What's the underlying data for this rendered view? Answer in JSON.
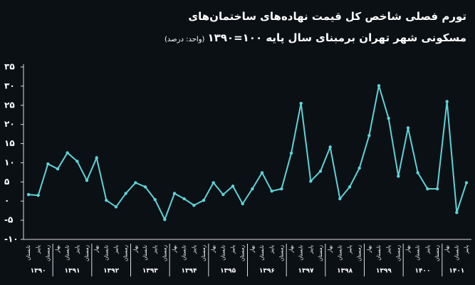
{
  "chart_data": {
    "type": "line",
    "title": "تورم فصلی شاخص کل قیمت نهاده‌های ساختمان‌های",
    "title_line2": "مسکونی شهر تهران برمبنای سال پایه ۱۰۰=۱۳۹۰",
    "unit_note": "(واحد: درصد)",
    "categories": [
      "تابستان",
      "پاییز",
      "زمستان",
      "بهار",
      "تابستان",
      "پاییز",
      "زمستان",
      "بهار",
      "تابستان",
      "پاییز",
      "زمستان",
      "بهار",
      "تابستان",
      "پاییز",
      "زمستان",
      "بهار",
      "تابستان",
      "پاییز",
      "زمستان",
      "بهار",
      "تابستان",
      "پاییز",
      "زمستان",
      "بهار",
      "تابستان",
      "پاییز",
      "زمستان",
      "بهار",
      "تابستان",
      "پاییز",
      "زمستان",
      "بهار",
      "تابستان",
      "پاییز",
      "زمستان",
      "بهار",
      "تابستان",
      "پاییز",
      "زمستان",
      "بهار",
      "تابستان",
      "پاییز",
      "زمستان",
      "بهار",
      "تابستان",
      "پاییز"
    ],
    "groups": [
      {
        "label": "۱۳۹۰",
        "size": 3
      },
      {
        "label": "۱۳۹۱",
        "size": 4
      },
      {
        "label": "۱۳۹۲",
        "size": 4
      },
      {
        "label": "۱۳۹۳",
        "size": 4
      },
      {
        "label": "۱۳۹۴",
        "size": 4
      },
      {
        "label": "۱۳۹۵",
        "size": 4
      },
      {
        "label": "۱۳۹۶",
        "size": 4
      },
      {
        "label": "۱۳۹۷",
        "size": 4
      },
      {
        "label": "۱۳۹۸",
        "size": 4
      },
      {
        "label": "۱۳۹۹",
        "size": 4
      },
      {
        "label": "۱۴۰۰",
        "size": 4
      },
      {
        "label": "۱۴۰۱",
        "size": 3
      }
    ],
    "series": [
      {
        "color": "#5ed3d6",
        "values": [
          1.7,
          1.5,
          9.7,
          8.4,
          12.6,
          10.4,
          5.4,
          11.3,
          0.2,
          -1.5,
          2.0,
          4.8,
          3.7,
          0.4,
          -4.8,
          2.0,
          0.6,
          -1.1,
          0.2,
          4.8,
          1.7,
          3.9,
          -0.7,
          3.2,
          7.4,
          2.6,
          3.2,
          12.5,
          25.5,
          5.2,
          7.8,
          14.1,
          0.6,
          3.7,
          8.6,
          17.1,
          30.1,
          21.6,
          6.5,
          19.1,
          7.4,
          3.2,
          3.2,
          26.0,
          -3.0,
          4.8
        ]
      }
    ],
    "ylim": [
      -10,
      35
    ],
    "yticks": [
      {
        "value": -10,
        "label": "-۱۰"
      },
      {
        "value": -5,
        "label": "-۵"
      },
      {
        "value": 0,
        "label": "۰"
      },
      {
        "value": 5,
        "label": "۵"
      },
      {
        "value": 10,
        "label": "۱۰"
      },
      {
        "value": 15,
        "label": "۱۵"
      },
      {
        "value": 20,
        "label": "۲۰"
      },
      {
        "value": 25,
        "label": "۲۵"
      },
      {
        "value": 30,
        "label": "۳۰"
      },
      {
        "value": 35,
        "label": "۳۵"
      }
    ]
  }
}
